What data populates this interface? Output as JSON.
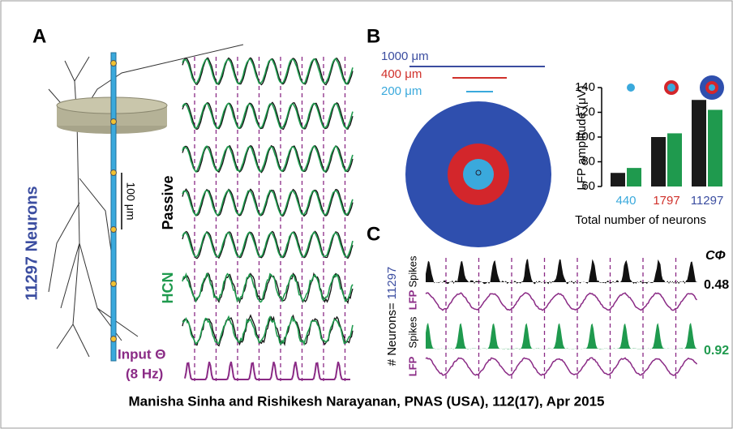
{
  "figure": {
    "panel_a": {
      "label": "A",
      "neurons": "11297 Neurons",
      "scale": "100 μm",
      "passive": "Passive",
      "hcn": "HCN",
      "input": "Input Θ",
      "freq": "(8 Hz)"
    },
    "panel_b": {
      "label": "B",
      "scale_1000": "1000 μm",
      "scale_400": "400 μm",
      "scale_200": "200 μm"
    },
    "panel_c": {
      "label": "C",
      "neurons_prefix": "# Neurons=",
      "neurons_count": "11297",
      "spikes_1": "Spikes",
      "lfp_1": "LFP",
      "spikes_2": "Spikes",
      "lfp_2": "LFP",
      "coherence_label": "CΦ",
      "coherence_1": "0.48",
      "coherence_2": "0.92"
    },
    "caption": "Manisha Sinha and Rishikesh Narayanan, PNAS (USA), 112(17), Apr 2015"
  },
  "chart_data": {
    "type": "bar",
    "ylabel": "LFP amplitude (μV)",
    "xlabel": "Total number of neurons",
    "categories": [
      "440",
      "1797",
      "11297"
    ],
    "category_colors": [
      "#3aa9dc",
      "#d0302a",
      "#3b4da0"
    ],
    "series": [
      {
        "color": "#1a1a1a",
        "values": [
          71,
          100,
          130
        ]
      },
      {
        "color": "#1f9a4e",
        "values": [
          75,
          103,
          122
        ]
      }
    ],
    "ylim": [
      60,
      140
    ],
    "yticks": [
      60,
      80,
      100,
      120,
      140
    ]
  }
}
